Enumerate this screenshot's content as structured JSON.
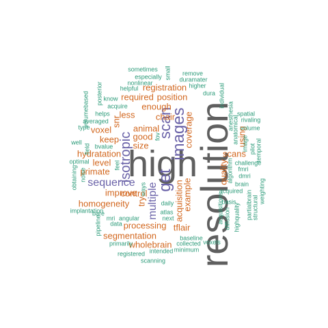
{
  "colors": {
    "grey": "#5f5f5f",
    "purple": "#6a62a8",
    "orange": "#d2671f",
    "teal": "#2a9a78",
    "background": "#ffffff"
  },
  "words": {
    "resolution": "resolution",
    "high": "high",
    "images": "images",
    "get": "get",
    "scan": "scan",
    "isotropic": "isotropic",
    "sequence": "sequence",
    "multiple": "multiple",
    "registration": "registration",
    "position": "position",
    "required": "required",
    "enough": "enough",
    "chair": "chair",
    "animal": "animal",
    "less": "less",
    "voxel": "voxel",
    "good": "good",
    "keep": "keep",
    "size": "size",
    "hydratation": "hydratation",
    "level": "level",
    "primate": "primate",
    "improve": "improve",
    "control": "control",
    "homogeneity": "homogeneity",
    "segmentation": "segmentation",
    "processing": "processing",
    "wholebrain": "wholebrain",
    "tflair": "tflair",
    "acquisition": "acquisition",
    "example": "example",
    "coverage": "coverage",
    "using": "using",
    "scans": "scans",
    "quality": "quality",
    "try": "try",
    "snr": "snr",
    "sometimes": "sometimes",
    "especially": "especially",
    "small": "small",
    "remove": "remove",
    "duramater": "duramater",
    "nonlinear": "nonlinear",
    "higher": "higher",
    "helpful": "helpful",
    "dura": "dura",
    "know": "know",
    "acquire": "acquire",
    "posterior": "posterior",
    "volumebased": "volumebased",
    "helps": "helps",
    "averaged": "averaged",
    "type": "type",
    "well": "well",
    "bvalue": "bvalue",
    "fov": "fov",
    "optimal": "optimal",
    "obtaining": "obtaining",
    "noise": "noise",
    "field": "field",
    "bare": "bare",
    "feel": "feel",
    "ways": "ways",
    "implantation": "implantation",
    "mri": "mri",
    "angular": "angular",
    "data": "data",
    "pipeline": "pipeline",
    "primarily": "primarily",
    "registered": "registered",
    "scanning": "scanning",
    "intended": "intended",
    "minimum": "minimum",
    "collected": "collected",
    "voxels": "voxels",
    "baseline": "baseline",
    "atlas": "atlas",
    "next": "next",
    "daily": "daily",
    "individual": "individual",
    "anesthesia": "anesthesia",
    "spatial": "spatial",
    "rivaling": "rivaling",
    "volume": "volume",
    "anatomical": "anatomical",
    "image": "image",
    "fmri": "fmri",
    "pilot": "pilot",
    "temporal": "temporal",
    "challenge": "challenge",
    "dmri": "dmri",
    "algorithm": "algorithm",
    "brain": "brain",
    "acquired": "acquired",
    "basis": "basis",
    "acquisitions": "acquisitions",
    "diffusion": "diffusion",
    "highquality": "highquality",
    "partialbrain": "partialbrain",
    "structural": "structural",
    "weighting": "weighting"
  }
}
